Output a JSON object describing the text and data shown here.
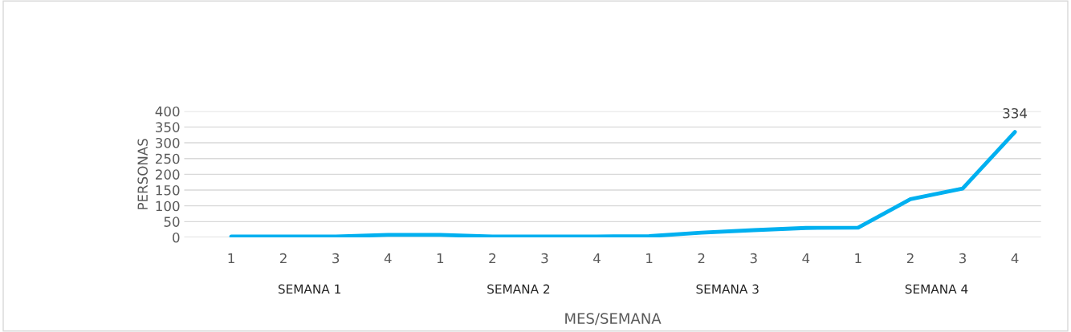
{
  "chart_data": {
    "type": "line",
    "xlabel": "MES/SEMANA",
    "ylabel": "PERSONAS",
    "categories": [
      "1",
      "2",
      "3",
      "4",
      "1",
      "2",
      "3",
      "4",
      "1",
      "2",
      "3",
      "4",
      "1",
      "2",
      "3",
      "4"
    ],
    "series": [
      {
        "color": "#00b0f0",
        "values": [
          3,
          3,
          3,
          8,
          8,
          3,
          3,
          3,
          4,
          15,
          23,
          30,
          31,
          121,
          155,
          334
        ],
        "value_labels": [
          null,
          null,
          null,
          null,
          null,
          null,
          null,
          null,
          null,
          null,
          null,
          null,
          null,
          null,
          null,
          "334"
        ]
      }
    ],
    "annotations": [
      "SEMANA 1",
      "SEMANA 2",
      "SEMANA 3",
      "SEMANA 4"
    ],
    "ylim": [
      0,
      400
    ],
    "yticks": [
      0,
      50,
      100,
      150,
      200,
      250,
      300,
      350,
      400
    ],
    "grid": "y",
    "marker": "none",
    "line_style": "solid"
  }
}
